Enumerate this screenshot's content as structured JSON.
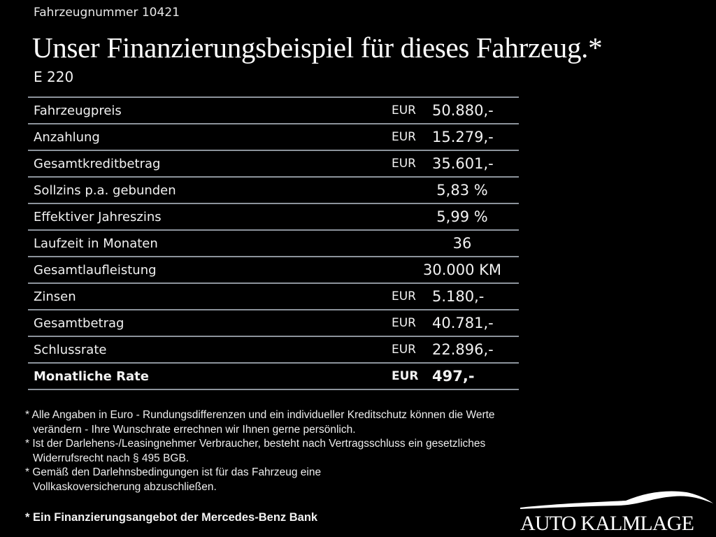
{
  "vehicle_number": "Fahrzeugnummer 10421",
  "title": "Unser Finanzierungsbeispiel für dieses Fahrzeug.*",
  "model": "E 220",
  "rows": [
    {
      "label": "Fahrzeugpreis",
      "currency": "EUR",
      "value": "50.880,-"
    },
    {
      "label": "Anzahlung",
      "currency": "EUR",
      "value": "15.279,-"
    },
    {
      "label": "Gesamtkreditbetrag",
      "currency": "EUR",
      "value": "35.601,-"
    },
    {
      "label": "Sollzins p.a. gebunden",
      "currency": "",
      "value": "5,83 %"
    },
    {
      "label": "Effektiver Jahreszins",
      "currency": "",
      "value": "5,99 %"
    },
    {
      "label": "Laufzeit in Monaten",
      "currency": "",
      "value": "36"
    },
    {
      "label": "Gesamtlaufleistung",
      "currency": "",
      "value": "30.000 KM"
    },
    {
      "label": "Zinsen",
      "currency": "EUR",
      "value": "5.180,-"
    },
    {
      "label": "Gesamtbetrag",
      "currency": "EUR",
      "value": "40.781,-"
    },
    {
      "label": "Schlussrate",
      "currency": "EUR",
      "value": "22.896,-"
    },
    {
      "label": "Monatliche Rate",
      "currency": "EUR",
      "value": "497,-",
      "bold": true
    }
  ],
  "notes": [
    "* Alle Angaben in Euro - Rundungsdifferenzen und ein individueller Kreditschutz können die Werte verändern - Ihre Wunschrate errechnen wir Ihnen gerne persönlich.",
    "* Ist der Darlehens-/Leasingnehmer Verbraucher, besteht nach Vertragsschluss ein gesetzliches Widerrufsrecht nach § 495 BGB.",
    "* Gemäß den Darlehnsbedingungen ist für das Fahrzeug eine Vollkaskoversicherung abzuschließen."
  ],
  "bank_note": "* Ein Finanzierungsangebot der Mercedes-Benz Bank",
  "logo": {
    "text": "AUTO KALMLAGE"
  },
  "colors": {
    "background": "#000000",
    "rule": "#8c939b",
    "text": "#f2f2f2"
  }
}
